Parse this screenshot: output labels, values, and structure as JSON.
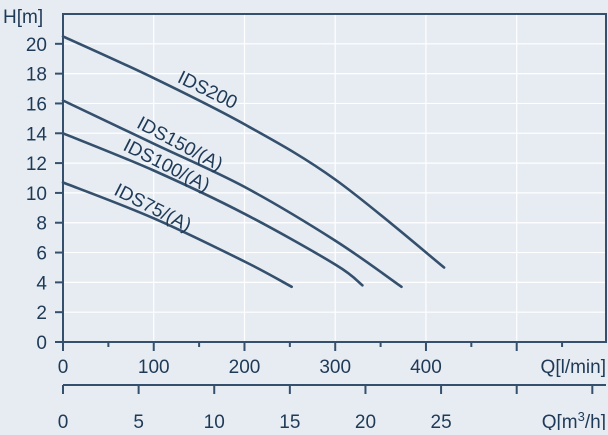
{
  "chart_data": {
    "type": "line",
    "ylabel": "H[m]",
    "xlabel": "Q[l/min]",
    "x2label_prefix": "Q[m",
    "x2label_sup": "3",
    "x2label_suffix": "/h]",
    "xlim": [
      0,
      600
    ],
    "ylim": [
      0,
      22
    ],
    "x_ticks": [
      0,
      100,
      200,
      300,
      400
    ],
    "y_ticks": [
      0,
      2,
      4,
      6,
      8,
      10,
      12,
      14,
      16,
      18,
      20
    ],
    "x2_ticks": [
      0,
      5,
      10,
      15,
      20,
      25
    ],
    "x2_factor": 16.6667,
    "grid": true,
    "colors": {
      "line": "#34506d",
      "text": "#1f3a57",
      "grid": "#ffffff",
      "background": "#e6ecf2"
    },
    "series": [
      {
        "name": "IDS200",
        "x": [
          0,
          100,
          200,
          300,
          420
        ],
        "y": [
          20.5,
          17.7,
          14.6,
          10.9,
          5.0
        ]
      },
      {
        "name": "IDS150/(A)",
        "x": [
          0,
          100,
          200,
          300,
          373
        ],
        "y": [
          16.2,
          13.3,
          10.4,
          6.8,
          3.7
        ]
      },
      {
        "name": "IDS100/(A)",
        "x": [
          0,
          100,
          200,
          300,
          330
        ],
        "y": [
          14.0,
          11.5,
          8.6,
          5.2,
          3.8
        ]
      },
      {
        "name": "IDS75/(A)",
        "x": [
          0,
          100,
          200,
          252
        ],
        "y": [
          10.7,
          8.3,
          5.4,
          3.7
        ]
      }
    ]
  }
}
